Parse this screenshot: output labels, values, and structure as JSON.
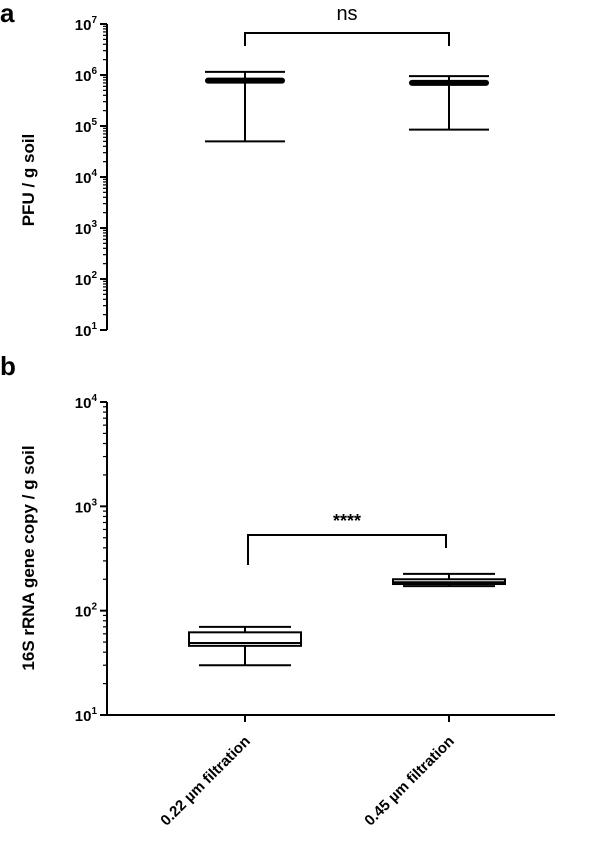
{
  "chart_data": [
    {
      "panel": "a",
      "type": "box",
      "ylabel": "PFU / g soil",
      "yscale": "log",
      "ylim": [
        10,
        10000000
      ],
      "yticks": [
        {
          "base": "10",
          "exp": "1",
          "value": 10
        },
        {
          "base": "10",
          "exp": "2",
          "value": 100
        },
        {
          "base": "10",
          "exp": "3",
          "value": 1000
        },
        {
          "base": "10",
          "exp": "4",
          "value": 10000
        },
        {
          "base": "10",
          "exp": "5",
          "value": 100000
        },
        {
          "base": "10",
          "exp": "6",
          "value": 1000000
        },
        {
          "base": "10",
          "exp": "7",
          "value": 10000000
        }
      ],
      "categories": [
        "0.22 µm filtration",
        "0.45 µm filtration"
      ],
      "boxes": [
        {
          "min": 50000,
          "q1": 780000,
          "median": 800000,
          "q3": 830000,
          "max": 1150000
        },
        {
          "min": 85000,
          "q1": 700000,
          "median": 720000,
          "q3": 750000,
          "max": 950000
        }
      ],
      "significance": {
        "label": "ns",
        "between": [
          0,
          1
        ]
      }
    },
    {
      "panel": "b",
      "type": "box",
      "ylabel": "16S rRNA gene copy / g soil",
      "yscale": "log",
      "ylim": [
        10,
        10000
      ],
      "yticks": [
        {
          "base": "10",
          "exp": "1",
          "value": 10
        },
        {
          "base": "10",
          "exp": "2",
          "value": 100
        },
        {
          "base": "10",
          "exp": "3",
          "value": 1000
        },
        {
          "base": "10",
          "exp": "4",
          "value": 10000
        }
      ],
      "categories": [
        "0.22 µm filtration",
        "0.45 µm filtration"
      ],
      "boxes": [
        {
          "min": 30,
          "q1": 46,
          "median": 49,
          "q3": 62,
          "max": 70
        },
        {
          "min": 172,
          "q1": 180,
          "median": 187,
          "q3": 200,
          "max": 225
        }
      ],
      "significance": {
        "label": "****",
        "between": [
          0,
          1
        ]
      }
    }
  ]
}
